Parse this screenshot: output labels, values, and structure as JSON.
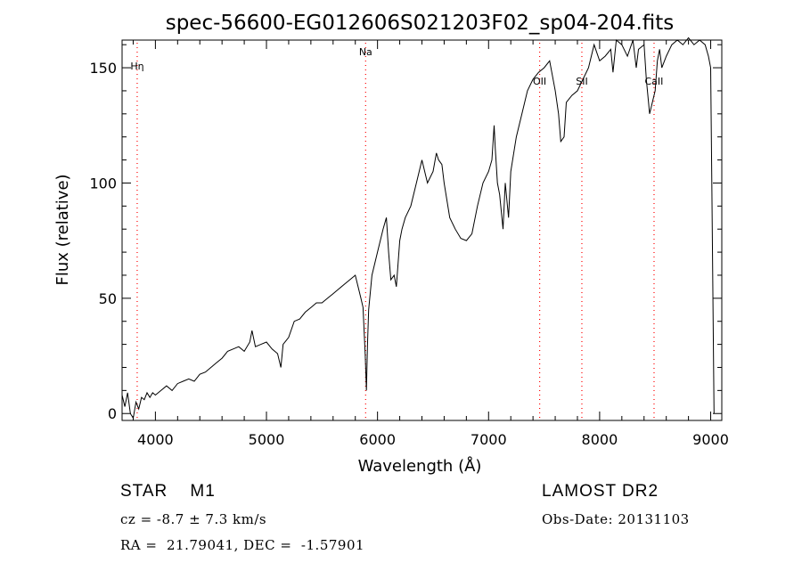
{
  "chart_data": {
    "type": "line",
    "title": "spec-56600-EG012606S021203F02_sp04-204.fits",
    "xlabel": "Wavelength (Å)",
    "ylabel": "Flux (relative)",
    "xlim": [
      3700,
      9100
    ],
    "ylim": [
      -3,
      162
    ],
    "xticks": [
      4000,
      5000,
      6000,
      7000,
      8000,
      9000
    ],
    "yticks": [
      0,
      50,
      100,
      150
    ],
    "grid": false,
    "line_color": "#000000",
    "marker_color": "#ff0000",
    "series": [
      {
        "x": [
          3700,
          3725,
          3750,
          3775,
          3800,
          3825,
          3850,
          3875,
          3900,
          3925,
          3950,
          3975,
          4000,
          4050,
          4100,
          4150,
          4200,
          4250,
          4300,
          4350,
          4400,
          4450,
          4500,
          4550,
          4600,
          4650,
          4700,
          4750,
          4800,
          4850,
          4870,
          4900,
          4950,
          5000,
          5050,
          5100,
          5130,
          5150,
          5200,
          5250,
          5300,
          5350,
          5400,
          5450,
          5500,
          5550,
          5600,
          5650,
          5700,
          5750,
          5800,
          5850,
          5870,
          5890,
          5900,
          5910,
          5920,
          5950,
          6000,
          6050,
          6080,
          6100,
          6120,
          6150,
          6170,
          6200,
          6220,
          6250,
          6300,
          6350,
          6400,
          6450,
          6500,
          6530,
          6550,
          6580,
          6600,
          6650,
          6700,
          6750,
          6800,
          6850,
          6900,
          6950,
          7000,
          7030,
          7050,
          7060,
          7080,
          7100,
          7130,
          7150,
          7180,
          7200,
          7250,
          7300,
          7350,
          7400,
          7450,
          7500,
          7550,
          7600,
          7630,
          7650,
          7680,
          7700,
          7750,
          7800,
          7850,
          7900,
          7950,
          8000,
          8050,
          8100,
          8120,
          8150,
          8200,
          8250,
          8300,
          8330,
          8350,
          8400,
          8420,
          8450,
          8500,
          8520,
          8540,
          8560,
          8600,
          8650,
          8700,
          8750,
          8800,
          8850,
          8900,
          8950,
          8980,
          9000,
          9010,
          9030
        ],
        "y": [
          8,
          3,
          9,
          0,
          -2,
          5,
          2,
          7,
          6,
          9,
          7,
          9,
          8,
          10,
          12,
          10,
          13,
          14,
          15,
          14,
          17,
          18,
          20,
          22,
          24,
          27,
          28,
          29,
          27,
          31,
          36,
          29,
          30,
          31,
          28,
          26,
          20,
          30,
          33,
          40,
          41,
          44,
          46,
          48,
          48,
          50,
          52,
          54,
          56,
          58,
          60,
          50,
          46,
          25,
          10,
          30,
          45,
          60,
          70,
          80,
          85,
          70,
          58,
          60,
          55,
          75,
          80,
          85,
          90,
          100,
          110,
          100,
          105,
          113,
          110,
          108,
          100,
          85,
          80,
          76,
          75,
          78,
          90,
          100,
          105,
          110,
          125,
          115,
          100,
          95,
          80,
          100,
          85,
          105,
          120,
          130,
          140,
          145,
          148,
          150,
          153,
          140,
          130,
          118,
          120,
          135,
          138,
          140,
          145,
          150,
          160,
          153,
          155,
          158,
          148,
          162,
          160,
          155,
          162,
          150,
          158,
          160,
          145,
          130,
          140,
          153,
          158,
          150,
          155,
          160,
          162,
          160,
          163,
          160,
          162,
          160,
          155,
          150,
          100,
          0
        ]
      }
    ],
    "line_markers": [
      {
        "label": "Hη",
        "x": 3836
      },
      {
        "label": "Na",
        "x": 5893
      },
      {
        "label": "OII",
        "x": 7460
      },
      {
        "label": "SII",
        "x": 7840
      },
      {
        "label": "CaII",
        "x": 8490
      }
    ]
  },
  "info": {
    "class_label": "STAR    M1",
    "survey": "LAMOST DR2",
    "cz": "cz = -8.7 ± 7.3 km/s",
    "obs_date": "Obs-Date: 20131103",
    "coords": "RA =  21.79041, DEC =  -1.57901"
  }
}
